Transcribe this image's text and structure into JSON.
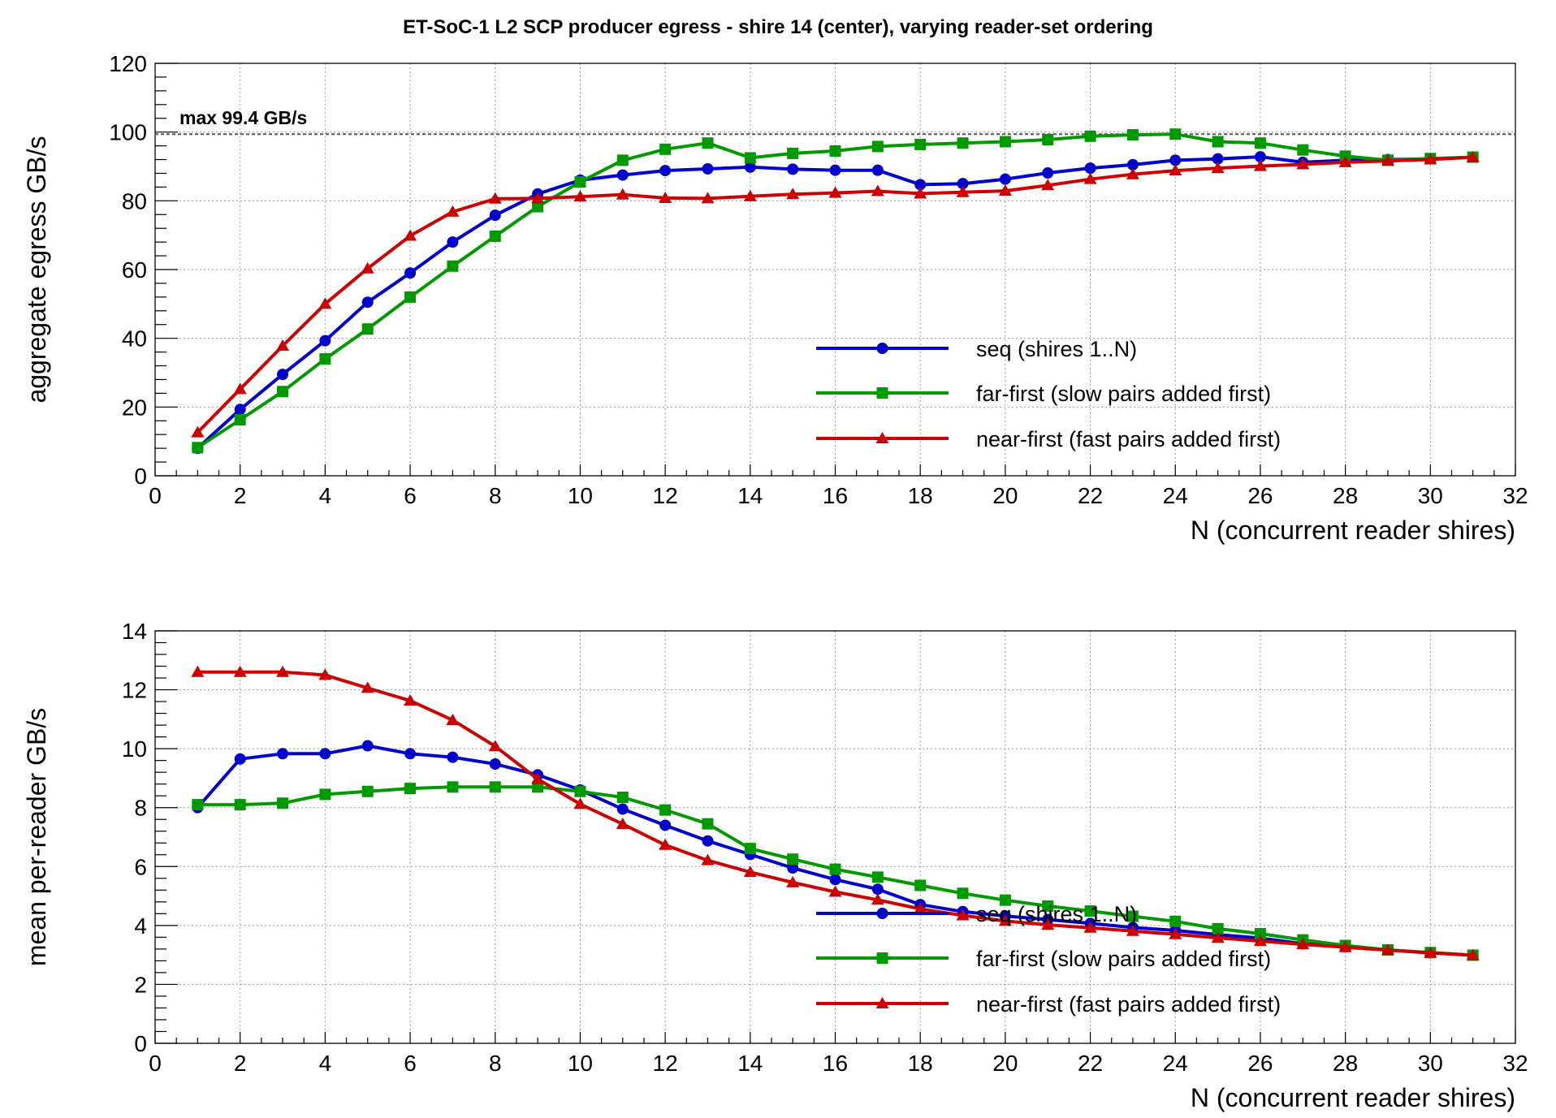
{
  "figure": {
    "title": "ET-SoC-1 L2 SCP producer egress  -  shire 14 (center), varying reader-set ordering"
  },
  "colors": {
    "seq": "#0000cc",
    "far": "#009900",
    "near": "#cc0000",
    "grid": "#9a9a9a",
    "maxline": "#555555"
  },
  "chart_data": [
    {
      "type": "line",
      "name": "aggregate",
      "xlabel": "N (concurrent reader shires)",
      "ylabel": "aggregate egress GB/s",
      "xlim": [
        0,
        32
      ],
      "ylim": [
        0,
        120
      ],
      "xticks": [
        0,
        2,
        4,
        6,
        8,
        10,
        12,
        14,
        16,
        18,
        20,
        22,
        24,
        26,
        28,
        30,
        32
      ],
      "yticks": [
        0,
        20,
        40,
        60,
        80,
        100,
        120
      ],
      "grid": true,
      "reference_line": {
        "value": 99.4,
        "label": "max 99.4 GB/s"
      },
      "legend_position": "center-right",
      "x": [
        1,
        2,
        3,
        4,
        5,
        6,
        7,
        8,
        9,
        10,
        11,
        12,
        13,
        14,
        15,
        16,
        17,
        18,
        19,
        20,
        21,
        22,
        23,
        24,
        25,
        26,
        27,
        28,
        29,
        30,
        31
      ],
      "series": [
        {
          "key": "seq",
          "name": "seq (shires 1..N)",
          "marker": "circle",
          "values": [
            8.0,
            19.3,
            29.5,
            39.3,
            50.5,
            59.0,
            68.0,
            75.8,
            82.0,
            86.0,
            87.5,
            88.8,
            89.3,
            89.8,
            89.2,
            88.9,
            88.9,
            84.7,
            85.0,
            86.3,
            88.1,
            89.5,
            90.5,
            91.8,
            92.2,
            92.8,
            91.2,
            91.8,
            92.0,
            92.2,
            92.7
          ]
        },
        {
          "key": "far",
          "name": "far-first (slow pairs added first)",
          "marker": "square",
          "values": [
            8.2,
            16.3,
            24.5,
            34.0,
            42.7,
            52.0,
            61.0,
            69.7,
            78.3,
            85.5,
            91.8,
            95.0,
            96.8,
            92.5,
            93.8,
            94.5,
            95.8,
            96.4,
            96.8,
            97.2,
            97.8,
            98.8,
            99.2,
            99.4,
            97.2,
            96.8,
            94.8,
            93.0,
            91.8,
            92.3,
            92.7
          ]
        },
        {
          "key": "near",
          "name": "near-first (fast pairs added first)",
          "marker": "triangle",
          "values": [
            12.6,
            25.2,
            37.8,
            50.0,
            60.3,
            69.8,
            76.8,
            80.6,
            80.7,
            81.2,
            81.8,
            80.8,
            80.7,
            81.3,
            81.9,
            82.3,
            82.8,
            82.1,
            82.5,
            82.9,
            84.5,
            86.3,
            87.7,
            88.8,
            89.5,
            90.1,
            90.6,
            91.2,
            91.6,
            92.0,
            92.7
          ]
        }
      ]
    },
    {
      "type": "line",
      "name": "per_reader",
      "xlabel": "N (concurrent reader shires)",
      "ylabel": "mean per-reader GB/s",
      "xlim": [
        0,
        32
      ],
      "ylim": [
        0,
        14
      ],
      "xticks": [
        0,
        2,
        4,
        6,
        8,
        10,
        12,
        14,
        16,
        18,
        20,
        22,
        24,
        26,
        28,
        30,
        32
      ],
      "yticks": [
        0,
        2,
        4,
        6,
        8,
        10,
        12,
        14
      ],
      "grid": true,
      "legend_position": "center-right",
      "x": [
        1,
        2,
        3,
        4,
        5,
        6,
        7,
        8,
        9,
        10,
        11,
        12,
        13,
        14,
        15,
        16,
        17,
        18,
        19,
        20,
        21,
        22,
        23,
        24,
        25,
        26,
        27,
        28,
        29,
        30,
        31
      ],
      "series": [
        {
          "key": "seq",
          "name": "seq (shires 1..N)",
          "marker": "circle",
          "values": [
            8.0,
            9.65,
            9.83,
            9.83,
            10.1,
            9.83,
            9.71,
            9.48,
            9.11,
            8.6,
            7.95,
            7.4,
            6.87,
            6.41,
            5.95,
            5.56,
            5.23,
            4.71,
            4.47,
            4.32,
            4.2,
            4.07,
            3.93,
            3.83,
            3.69,
            3.57,
            3.38,
            3.28,
            3.17,
            3.07,
            2.99
          ]
        },
        {
          "key": "far",
          "name": "far-first (slow pairs added first)",
          "marker": "square",
          "values": [
            8.1,
            8.1,
            8.15,
            8.45,
            8.55,
            8.65,
            8.7,
            8.7,
            8.7,
            8.55,
            8.35,
            7.92,
            7.45,
            6.61,
            6.25,
            5.91,
            5.64,
            5.36,
            5.09,
            4.86,
            4.66,
            4.49,
            4.31,
            4.14,
            3.89,
            3.72,
            3.51,
            3.32,
            3.17,
            3.08,
            2.99
          ]
        },
        {
          "key": "near",
          "name": "near-first (fast pairs added first)",
          "marker": "triangle",
          "values": [
            12.6,
            12.6,
            12.6,
            12.5,
            12.06,
            11.63,
            10.97,
            10.08,
            8.97,
            8.12,
            7.44,
            6.73,
            6.21,
            5.81,
            5.46,
            5.14,
            4.87,
            4.56,
            4.34,
            4.15,
            4.02,
            3.92,
            3.81,
            3.7,
            3.58,
            3.47,
            3.36,
            3.26,
            3.16,
            3.07,
            2.99
          ]
        }
      ]
    }
  ]
}
